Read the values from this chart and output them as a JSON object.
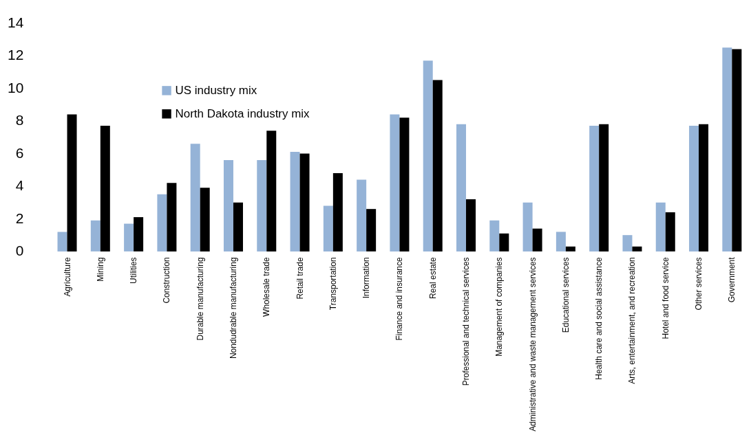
{
  "chart_data": {
    "type": "bar",
    "categories": [
      "Agriculture",
      "Mining",
      "Utilities",
      "Construction",
      "Durable manufacturing",
      "Nondudrable manufacturing",
      "Wholesale trade",
      "Retail trade",
      "Transportation",
      "Information",
      "Finance and insurance",
      "Real estate",
      "Professional and technical services",
      "Management of companies",
      "Administrative and waste management services",
      "Educational services",
      "Health care and social assistance",
      "Arts, entertainment, and recreation",
      "Hotel and food service",
      "Other services",
      "Government"
    ],
    "series": [
      {
        "name": "US industry mix",
        "color": "#95b3d7",
        "values": [
          1.2,
          1.9,
          1.7,
          3.5,
          6.6,
          5.6,
          5.6,
          6.1,
          2.8,
          4.4,
          8.4,
          11.7,
          7.8,
          1.9,
          3.0,
          1.2,
          7.7,
          1.0,
          3.0,
          7.7,
          12.5
        ]
      },
      {
        "name": "North Dakota industry mix",
        "color": "#000000",
        "values": [
          8.4,
          7.7,
          2.1,
          4.2,
          3.9,
          3.0,
          7.4,
          6.0,
          4.8,
          2.6,
          8.2,
          10.5,
          3.2,
          1.1,
          1.4,
          0.3,
          7.8,
          0.3,
          2.4,
          7.8,
          12.4
        ]
      }
    ],
    "ylim": [
      0,
      14
    ],
    "yticks": [
      0,
      2,
      4,
      6,
      8,
      10,
      12,
      14
    ],
    "grid": false,
    "legend": "top left"
  }
}
